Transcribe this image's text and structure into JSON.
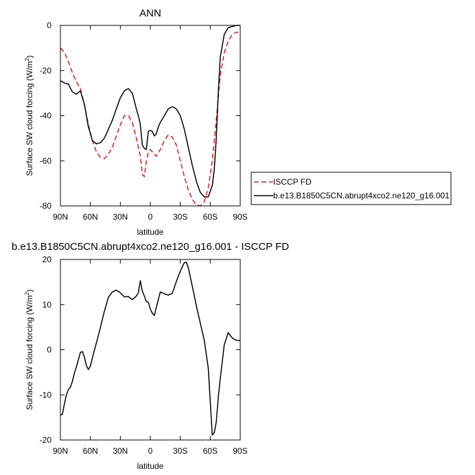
{
  "chart_data": [
    {
      "type": "line",
      "title": "ANN",
      "xlabel": "latitude",
      "ylabel": "Surface SW cloud forcing (W/m",
      "ylabel_sup": "2",
      "ylabel_close": ")",
      "xlim": [
        90,
        -90
      ],
      "ylim": [
        -80,
        0
      ],
      "xticks": [
        90,
        60,
        30,
        0,
        -30,
        -60,
        -90
      ],
      "xtick_labels": [
        "90N",
        "60N",
        "30N",
        "0",
        "30S",
        "60S",
        "90S"
      ],
      "yticks": [
        0,
        -20,
        -40,
        -60,
        -80
      ],
      "ytick_labels": [
        "0",
        "-20",
        "-40",
        "-60",
        "-80"
      ],
      "grid": false,
      "legend": "right",
      "series": [
        {
          "name": "ISCCP FD",
          "color": "#e8141c",
          "dash": "dashed",
          "x": [
            90,
            86,
            82,
            78,
            74,
            70,
            66,
            62,
            58,
            54,
            50,
            46,
            42,
            38,
            34,
            30,
            26,
            22,
            18,
            14,
            10,
            8,
            6,
            4,
            2,
            0,
            -2,
            -4,
            -6,
            -10,
            -14,
            -18,
            -22,
            -26,
            -30,
            -34,
            -38,
            -42,
            -46,
            -50,
            -54,
            -58,
            -62,
            -66,
            -70,
            -74,
            -78,
            -82,
            -86,
            -90
          ],
          "y": [
            -10,
            -12,
            -16,
            -21,
            -25,
            -28,
            -35,
            -44,
            -51,
            -56,
            -58.5,
            -59,
            -57,
            -54,
            -49,
            -44,
            -40,
            -40,
            -43,
            -50,
            -58,
            -66,
            -67,
            -60,
            -56,
            -55,
            -56,
            -57,
            -58,
            -55,
            -51,
            -48.5,
            -49.5,
            -53,
            -60,
            -67,
            -73,
            -77,
            -79.5,
            -80,
            -78,
            -72,
            -60,
            -42,
            -22,
            -12,
            -7,
            -4,
            -3,
            -3
          ]
        },
        {
          "name": "b.e13.B1850C5CN.abrupt4xco2.ne120_g16.001",
          "color": "#000000",
          "dash": "solid",
          "x": [
            90,
            88,
            86,
            82,
            78,
            74,
            70,
            66,
            62,
            58,
            54,
            50,
            46,
            42,
            38,
            34,
            30,
            26,
            22,
            18,
            14,
            12,
            10,
            8,
            6,
            4,
            2,
            0,
            -2,
            -4,
            -6,
            -8,
            -10,
            -14,
            -18,
            -22,
            -26,
            -30,
            -34,
            -38,
            -42,
            -46,
            -50,
            -54,
            -58,
            -62,
            -64,
            -66,
            -68,
            -70,
            -74,
            -78,
            -82,
            -86,
            -90
          ],
          "y": [
            -24.5,
            -25,
            -25.5,
            -26,
            -29.5,
            -30.5,
            -29,
            -35,
            -45,
            -51,
            -52.5,
            -52,
            -50,
            -46,
            -42,
            -37,
            -32,
            -29,
            -28,
            -30,
            -37,
            -40,
            -44,
            -53,
            -54.5,
            -55,
            -47,
            -46.5,
            -47,
            -49,
            -48,
            -45,
            -43,
            -40,
            -37,
            -36,
            -37,
            -40,
            -46,
            -54,
            -62,
            -69,
            -74,
            -76,
            -76,
            -71,
            -64,
            -50,
            -30,
            -14,
            -4,
            -1,
            -0.5,
            0,
            0
          ]
        }
      ]
    },
    {
      "type": "line",
      "title": "b.e13.B1850C5CN.abrupt4xco2.ne120_g16.001 - ISCCP FD",
      "xlabel": "latitude",
      "ylabel": "Surface SW cloud forcing (W/m",
      "ylabel_sup": "2",
      "ylabel_close": ")",
      "xlim": [
        90,
        -90
      ],
      "ylim": [
        -20,
        20
      ],
      "xticks": [
        90,
        60,
        30,
        0,
        -30,
        -60,
        -90
      ],
      "xtick_labels": [
        "90N",
        "60N",
        "30N",
        "0",
        "30S",
        "60S",
        "90S"
      ],
      "yticks": [
        20,
        10,
        0,
        -10,
        -20
      ],
      "ytick_labels": [
        "20",
        "10",
        "0",
        "-10",
        "-20"
      ],
      "grid": false,
      "series": [
        {
          "color": "#000000",
          "dash": "solid",
          "x": [
            90,
            88,
            86,
            84,
            82,
            80,
            78,
            76,
            74,
            72,
            70,
            68,
            66,
            64,
            62,
            60,
            58,
            54,
            50,
            46,
            42,
            38,
            34,
            30,
            26,
            22,
            18,
            14,
            12,
            10,
            8,
            6,
            4,
            2,
            0,
            -2,
            -4,
            -6,
            -10,
            -14,
            -18,
            -22,
            -26,
            -30,
            -34,
            -36,
            -38,
            -42,
            -46,
            -50,
            -54,
            -58,
            -62,
            -64,
            -66,
            -68,
            -70,
            -74,
            -78,
            -82,
            -86,
            -90
          ],
          "y": [
            -14.5,
            -14.3,
            -12,
            -10,
            -8.8,
            -8.3,
            -7,
            -5.2,
            -3.8,
            -2.2,
            -0.6,
            -0.4,
            -1.6,
            -3.5,
            -4.4,
            -3.6,
            -1.8,
            1.5,
            4.9,
            8.5,
            11.6,
            12.8,
            13.2,
            12.6,
            11.7,
            11.8,
            11.1,
            11.9,
            12.6,
            15.3,
            13.0,
            11.9,
            10.7,
            10.5,
            9.0,
            8.1,
            7.6,
            9.4,
            12.8,
            12.4,
            12.1,
            12.5,
            15.1,
            17.4,
            19.3,
            19.4,
            18.2,
            14.1,
            9.8,
            5.9,
            2.1,
            -4.1,
            -18.9,
            -18.4,
            -16.0,
            -10.6,
            -6.4,
            1.1,
            3.8,
            2.6,
            2.1,
            2.0
          ]
        }
      ]
    }
  ]
}
